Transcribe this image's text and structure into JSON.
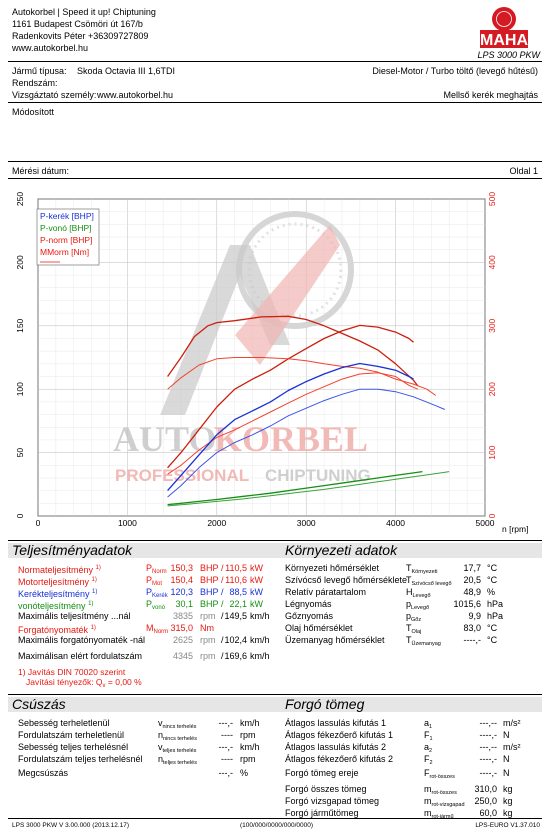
{
  "header": {
    "company": "Autokorbel | Speed it up! Chiptuning",
    "address": "1161 Budapest Csömöri út 167/b",
    "contact": "Radenkovits Péter +36309727809",
    "website": "www.autokorbel.hu",
    "logo_text": "MAHA",
    "logo_ring_text": "Maschinenbau Haldenwang",
    "dyno_model": "LPS 3000 PKW"
  },
  "vehicle": {
    "type_label": "Jármű típusa:",
    "type_value": "Skoda Octavia III 1,6TDI",
    "plate_label": "Rendszám:",
    "tester_label": "Vizsgáztató személy:",
    "tester_value": "www.autokorbel.hu",
    "engine": "Diesel-Motor / Turbo töltő (levegő hűtésű)",
    "drive": "Mellső kerék meghajtás"
  },
  "modified_label": "Módosított",
  "measure_date_label": "Mérési dátum:",
  "page_label": "Oldal 1",
  "watermark": {
    "word1": "AUTO",
    "word2": "KORBEL",
    "line2a": "PROFESSIONAL ",
    "line2b": "CHIPTUNING"
  },
  "chart_data": {
    "type": "line",
    "x_unit": "n [rpm]",
    "xlim": [
      0,
      5000
    ],
    "x_ticks": [
      0,
      1000,
      2000,
      3000,
      4000,
      5000
    ],
    "ylim_left": [
      0,
      250
    ],
    "y_ticks_left": [
      0,
      50,
      100,
      150,
      200,
      250
    ],
    "ylim_right": [
      0,
      500
    ],
    "y_ticks_right": [
      0,
      100,
      200,
      300,
      400,
      500
    ],
    "legend": [
      {
        "label": "P-kerék [BHP]",
        "color": "#1930d6"
      },
      {
        "label": "P-vonó [BHP]",
        "color": "#148f14"
      },
      {
        "label": "P-norm [BHP]",
        "color": "#e8170f"
      },
      {
        "label": "MMorm [Nm]",
        "color": "#e8170f"
      }
    ],
    "series": [
      {
        "name": "P-norm",
        "axis": "left",
        "color": "#cc1f0e",
        "width": 1.3,
        "points": [
          [
            1450,
            38
          ],
          [
            1600,
            50
          ],
          [
            1800,
            68
          ],
          [
            2000,
            86
          ],
          [
            2200,
            100
          ],
          [
            2400,
            108
          ],
          [
            2600,
            115
          ],
          [
            2800,
            124
          ],
          [
            3000,
            132
          ],
          [
            3200,
            140
          ],
          [
            3400,
            146
          ],
          [
            3600,
            150.3
          ],
          [
            3800,
            149
          ],
          [
            4000,
            145
          ],
          [
            4150,
            140
          ],
          [
            4200,
            137
          ]
        ]
      },
      {
        "name": "P-norm (base)",
        "axis": "left",
        "color": "#f2432f",
        "width": 1.0,
        "points": [
          [
            1450,
            33
          ],
          [
            1600,
            40
          ],
          [
            1800,
            52
          ],
          [
            2000,
            62
          ],
          [
            2200,
            68
          ],
          [
            2400,
            75
          ],
          [
            2600,
            82
          ],
          [
            2800,
            89
          ],
          [
            3000,
            96
          ],
          [
            3200,
            102
          ],
          [
            3400,
            108
          ],
          [
            3600,
            112
          ],
          [
            3800,
            113
          ],
          [
            4000,
            110
          ],
          [
            4150,
            103
          ],
          [
            4250,
            100
          ]
        ]
      },
      {
        "name": "M-norm",
        "axis": "right",
        "color": "#cc1f0e",
        "width": 1.3,
        "points": [
          [
            1450,
            220
          ],
          [
            1600,
            250
          ],
          [
            1750,
            283
          ],
          [
            1900,
            300
          ],
          [
            2000,
            305
          ],
          [
            2200,
            308
          ],
          [
            2500,
            314
          ],
          [
            2800,
            315
          ],
          [
            3000,
            310
          ],
          [
            3200,
            300
          ],
          [
            3400,
            288
          ],
          [
            3600,
            276
          ],
          [
            3800,
            262
          ],
          [
            4000,
            240
          ],
          [
            4200,
            214
          ],
          [
            4250,
            205
          ]
        ]
      },
      {
        "name": "M-norm (base)",
        "axis": "right",
        "color": "#f2432f",
        "width": 1.0,
        "points": [
          [
            1450,
            200
          ],
          [
            1600,
            218
          ],
          [
            1800,
            238
          ],
          [
            2000,
            248
          ],
          [
            2200,
            250
          ],
          [
            2500,
            250
          ],
          [
            2800,
            248
          ],
          [
            3000,
            245
          ],
          [
            3200,
            240
          ],
          [
            3400,
            236
          ],
          [
            3600,
            233
          ],
          [
            3800,
            227
          ],
          [
            4000,
            216
          ],
          [
            4200,
            208
          ],
          [
            4350,
            200
          ],
          [
            4450,
            190
          ]
        ]
      },
      {
        "name": "P-kerék",
        "axis": "left",
        "color": "#1930d6",
        "width": 1.3,
        "points": [
          [
            1450,
            20
          ],
          [
            1600,
            32
          ],
          [
            1800,
            48
          ],
          [
            2000,
            64
          ],
          [
            2200,
            76
          ],
          [
            2400,
            83
          ],
          [
            2600,
            90
          ],
          [
            2800,
            99
          ],
          [
            3000,
            106
          ],
          [
            3200,
            112
          ],
          [
            3400,
            117
          ],
          [
            3600,
            120.3
          ],
          [
            3800,
            118
          ],
          [
            4000,
            115
          ],
          [
            4150,
            110
          ],
          [
            4200,
            108
          ]
        ]
      },
      {
        "name": "P-kerék (base)",
        "axis": "left",
        "color": "#3a54e6",
        "width": 1.0,
        "points": [
          [
            1450,
            15
          ],
          [
            1600,
            24
          ],
          [
            1800,
            38
          ],
          [
            2000,
            50
          ],
          [
            2200,
            58
          ],
          [
            2400,
            64
          ],
          [
            2600,
            71
          ],
          [
            2800,
            79
          ],
          [
            3000,
            85
          ],
          [
            3200,
            91
          ],
          [
            3400,
            96
          ],
          [
            3600,
            100
          ],
          [
            3800,
            100
          ],
          [
            4000,
            98
          ],
          [
            4200,
            94
          ],
          [
            4450,
            87
          ],
          [
            4550,
            84
          ]
        ]
      },
      {
        "name": "P-vonó",
        "axis": "left",
        "color": "#148f14",
        "width": 1.3,
        "points": [
          [
            1450,
            9
          ],
          [
            1600,
            10
          ],
          [
            1800,
            11.5
          ],
          [
            2000,
            13
          ],
          [
            2300,
            15.5
          ],
          [
            2600,
            18
          ],
          [
            2900,
            21
          ],
          [
            3200,
            24
          ],
          [
            3500,
            27
          ],
          [
            3800,
            30
          ],
          [
            4000,
            32
          ],
          [
            4200,
            34
          ],
          [
            4300,
            35
          ]
        ]
      },
      {
        "name": "P-vonó (base)",
        "axis": "left",
        "color": "#3aa33a",
        "width": 1.0,
        "points": [
          [
            1450,
            8
          ],
          [
            1700,
            9.5
          ],
          [
            2000,
            11.5
          ],
          [
            2300,
            13.5
          ],
          [
            2600,
            16
          ],
          [
            2900,
            18.5
          ],
          [
            3200,
            21
          ],
          [
            3500,
            24
          ],
          [
            3800,
            27
          ],
          [
            4100,
            30
          ],
          [
            4400,
            33
          ],
          [
            4600,
            35
          ]
        ]
      }
    ]
  },
  "performance": {
    "title": "Teljesítményadatok",
    "rows": [
      {
        "label": "Normateljesítmény",
        "sup": "1)",
        "sym": "P",
        "sub": "Norm",
        "v1": "150,3",
        "u1": "BHP",
        "sep": "/",
        "v2": "110,5",
        "u2": "kW",
        "cls": "red"
      },
      {
        "label": "Motorteljesítmény",
        "sup": "1)",
        "sym": "P",
        "sub": "Mot",
        "v1": "150,4",
        "u1": "BHP",
        "sep": "/",
        "v2": "110,6",
        "u2": "kW",
        "cls": "red"
      },
      {
        "label": "Kerékteljesítmény",
        "sup": "1)",
        "sym": "P",
        "sub": "Kerék",
        "v1": "120,3",
        "u1": "BHP",
        "sep": "/",
        "v2": "88,5",
        "u2": "kW",
        "cls": "blue"
      },
      {
        "label": "vonóteljesítmény",
        "sup": "1)",
        "sym": "P",
        "sub": "vonó",
        "v1": "30,1",
        "u1": "BHP",
        "sep": "/",
        "v2": "22,1",
        "u2": "kW",
        "cls": "green"
      },
      {
        "label": "Maximális teljesítmény ...nál",
        "sup": "",
        "sym": "",
        "sub": "",
        "v1": "3835",
        "u1": "rpm",
        "sep": "/",
        "v2": "149,5",
        "u2": "km/h",
        "cls": "mixed"
      }
    ],
    "torque_label": "Forgatónyomaték",
    "torque_sup": "1)",
    "torque_sym": "M",
    "torque_sub": "Norm",
    "torque_value": "315,0",
    "torque_unit": "Nm",
    "max_torque_label": "Maximális forgatónyomaték -nál",
    "max_torque_rpm": "2625",
    "max_torque_rpm_unit": "rpm",
    "max_torque_sep": "/",
    "max_torque_speed": "102,4",
    "max_torque_speed_unit": "km/h",
    "max_rpm_label": "Maximálisan elért fordulatszám",
    "max_rpm": "4345",
    "max_rpm_unit": "rpm",
    "max_rpm_sep": "/",
    "max_rpm_speed": "169,6",
    "max_rpm_speed_unit": "km/h",
    "footnote1": "1) Javítás DIN 70020 szerint",
    "footnote2a": "Javítási tényezők: Q",
    "footnote2b": "v",
    "footnote2c": " =   0,00 %"
  },
  "environment": {
    "title": "Környezeti adatok",
    "rows": [
      {
        "label": "Környezeti hőmérséklet",
        "sym": "T",
        "sub": "Környezeti",
        "value": "17,7",
        "unit": "°C"
      },
      {
        "label": "Szívócső levegő hőmérséklete",
        "sym": "T",
        "sub": "Szívócső levegő",
        "value": "20,5",
        "unit": "°C"
      },
      {
        "label": "Relatív páratartalom",
        "sym": "H",
        "sub": "Levegő",
        "value": "48,9",
        "unit": "%"
      },
      {
        "label": "Légnyomás",
        "sym": "p",
        "sub": "Levegő",
        "value": "1015,6",
        "unit": "hPa"
      },
      {
        "label": "Gőznyomás",
        "sym": "p",
        "sub": "Gőz",
        "value": "9,9",
        "unit": "hPa"
      },
      {
        "label": "Olaj hőmérséklet",
        "sym": "T",
        "sub": "Olaj",
        "value": "83,0",
        "unit": "°C"
      },
      {
        "label": "Üzemanyag hőmérséklet",
        "sym": "T",
        "sub": "Üzemanyag",
        "value": "----,-",
        "unit": "°C"
      }
    ]
  },
  "slip": {
    "title": "Csúszás",
    "rows": [
      {
        "label": "Sebesség terheletlenül",
        "sym": "v",
        "sub": "nincs terhelés",
        "value": "---,-",
        "unit": "km/h"
      },
      {
        "label": "Fordulatszám terheletlenül",
        "sym": "n",
        "sub": "nincs terhelés",
        "value": "----",
        "unit": "rpm"
      },
      {
        "label": "Sebesség teljes terhelésnél",
        "sym": "v",
        "sub": "teljes terhelés",
        "value": "---,-",
        "unit": "km/h"
      },
      {
        "label": "Fordulatszám teljes terhelésnél",
        "sym": "n",
        "sub": "teljes terhelés",
        "value": "----",
        "unit": "rpm"
      },
      {
        "label": "Megcsúszás",
        "sym": "",
        "sub": "",
        "value": "---,-",
        "unit": "%"
      }
    ]
  },
  "mass": {
    "title": "Forgó tömeg",
    "rows": [
      {
        "label": "Átlagos lassulás kifutás 1",
        "sym": "a",
        "sub": "1",
        "value": "---,--",
        "unit": "m/s²"
      },
      {
        "label": "Átlagos fékezőerő kifutás 1",
        "sym": "F",
        "sub": "1",
        "value": "----,-",
        "unit": "N"
      },
      {
        "label": "Átlagos lassulás kifutás 2",
        "sym": "a",
        "sub": "2",
        "value": "---,--",
        "unit": "m/s²"
      },
      {
        "label": "Átlagos fékezőerő kifutás 2",
        "sym": "F",
        "sub": "2",
        "value": "----,-",
        "unit": "N"
      },
      {
        "label": "Forgó tömeg ereje",
        "sym": "F",
        "sub": "rot-összes",
        "value": "----,-",
        "unit": "N"
      },
      {
        "label": "Forgó összes tömeg",
        "sym": "m",
        "sub": "rot-összes",
        "value": "310,0",
        "unit": "kg"
      },
      {
        "label": "Forgó vizsgapad tömeg",
        "sym": "m",
        "sub": "rot-vizsgapad",
        "value": "250,0",
        "unit": "kg"
      },
      {
        "label": "Forgó járműtömeg",
        "sym": "m",
        "sub": "rot-jármű",
        "value": "60,0",
        "unit": "kg"
      }
    ]
  },
  "footer": {
    "left": "LPS 3000 PKW V 3.00.000 (2013.12.17)",
    "center": "(100/000/0000/000/0000)",
    "right": "LPS-EURO V1.37.010"
  }
}
